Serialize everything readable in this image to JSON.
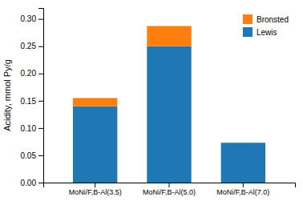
{
  "chart_data": {
    "type": "bar",
    "stacked": true,
    "categories": [
      "MoNi/F,B-Al(3.5)",
      "MoNi/F,B-Al(5.0)",
      "MoNi/F,B-Al(7.0)"
    ],
    "series": [
      {
        "name": "Lewis",
        "values": [
          0.14,
          0.25,
          0.073
        ]
      },
      {
        "name": "Bronsted",
        "values": [
          0.015,
          0.037,
          0.0
        ]
      }
    ],
    "ylabel": "Acidity, mmol Py/g",
    "ylim": [
      0.0,
      0.32
    ],
    "yticks": [
      {
        "value": 0.0,
        "label": "0.00"
      },
      {
        "value": 0.05,
        "label": "0.05"
      },
      {
        "value": 0.1,
        "label": "0.10"
      },
      {
        "value": 0.15,
        "label": "0.15"
      },
      {
        "value": 0.2,
        "label": "0.20"
      },
      {
        "value": 0.25,
        "label": "0.25"
      },
      {
        "value": 0.3,
        "label": "0.30"
      }
    ],
    "grid": false,
    "legend": "upper-right"
  }
}
